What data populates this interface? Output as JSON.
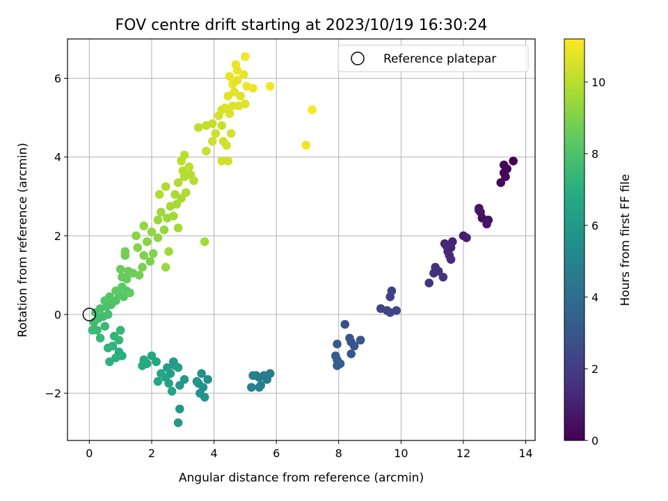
{
  "chart_data": {
    "type": "scatter",
    "title": "FOV centre drift starting at 2023/10/19 16:30:24",
    "xlabel": "Angular distance from reference (arcmin)",
    "ylabel": "Rotation from reference (arcmin)",
    "xlim": [
      -0.7,
      14.3
    ],
    "ylim": [
      -3.2,
      7.0
    ],
    "xticks": [
      0,
      2,
      4,
      6,
      8,
      10,
      12,
      14
    ],
    "yticks": [
      -2,
      0,
      2,
      4,
      6
    ],
    "grid": true,
    "legend": {
      "location": "top-right",
      "entries": [
        "Reference platepar"
      ]
    },
    "reference_point": {
      "x": 0,
      "y": 0
    },
    "colorbar": {
      "label": "Hours from first FF file",
      "colormap": "viridis",
      "range": [
        0,
        11.2
      ],
      "ticks": [
        0,
        2,
        4,
        6,
        8,
        10
      ]
    },
    "points": [
      {
        "x": 13.6,
        "y": 3.9,
        "h": 0.0
      },
      {
        "x": 13.4,
        "y": 3.7,
        "h": 0.05
      },
      {
        "x": 13.3,
        "y": 3.8,
        "h": 0.1
      },
      {
        "x": 13.3,
        "y": 3.6,
        "h": 0.15
      },
      {
        "x": 13.35,
        "y": 3.5,
        "h": 0.2
      },
      {
        "x": 13.2,
        "y": 3.35,
        "h": 0.25
      },
      {
        "x": 12.5,
        "y": 2.7,
        "h": 0.45
      },
      {
        "x": 12.55,
        "y": 2.6,
        "h": 0.5
      },
      {
        "x": 12.6,
        "y": 2.45,
        "h": 0.55
      },
      {
        "x": 12.8,
        "y": 2.4,
        "h": 0.6
      },
      {
        "x": 12.75,
        "y": 2.3,
        "h": 0.65
      },
      {
        "x": 12.5,
        "y": 2.65,
        "h": 0.7
      },
      {
        "x": 12.0,
        "y": 2.0,
        "h": 0.9
      },
      {
        "x": 12.1,
        "y": 1.95,
        "h": 0.95
      },
      {
        "x": 11.4,
        "y": 1.8,
        "h": 1.05
      },
      {
        "x": 11.65,
        "y": 1.85,
        "h": 1.1
      },
      {
        "x": 11.6,
        "y": 1.7,
        "h": 1.15
      },
      {
        "x": 11.5,
        "y": 1.6,
        "h": 1.2
      },
      {
        "x": 11.45,
        "y": 1.75,
        "h": 1.25
      },
      {
        "x": 11.55,
        "y": 1.5,
        "h": 1.3
      },
      {
        "x": 11.6,
        "y": 1.4,
        "h": 1.35
      },
      {
        "x": 11.1,
        "y": 1.2,
        "h": 1.5
      },
      {
        "x": 11.05,
        "y": 1.05,
        "h": 1.55
      },
      {
        "x": 11.2,
        "y": 1.1,
        "h": 1.6
      },
      {
        "x": 11.35,
        "y": 0.95,
        "h": 1.65
      },
      {
        "x": 10.9,
        "y": 0.8,
        "h": 1.7
      },
      {
        "x": 9.7,
        "y": 0.6,
        "h": 2.1
      },
      {
        "x": 9.65,
        "y": 0.45,
        "h": 2.15
      },
      {
        "x": 9.35,
        "y": 0.15,
        "h": 2.25
      },
      {
        "x": 9.55,
        "y": 0.1,
        "h": 2.3
      },
      {
        "x": 9.65,
        "y": 0.05,
        "h": 2.35
      },
      {
        "x": 9.85,
        "y": 0.1,
        "h": 2.4
      },
      {
        "x": 8.2,
        "y": -0.25,
        "h": 2.75
      },
      {
        "x": 8.35,
        "y": -0.6,
        "h": 2.85
      },
      {
        "x": 8.4,
        "y": -0.7,
        "h": 2.9
      },
      {
        "x": 8.5,
        "y": -0.8,
        "h": 2.95
      },
      {
        "x": 8.7,
        "y": -0.65,
        "h": 3.0
      },
      {
        "x": 8.4,
        "y": -1.0,
        "h": 3.05
      },
      {
        "x": 7.95,
        "y": -0.75,
        "h": 3.15
      },
      {
        "x": 7.9,
        "y": -1.05,
        "h": 3.2
      },
      {
        "x": 7.95,
        "y": -1.15,
        "h": 3.25
      },
      {
        "x": 7.95,
        "y": -1.3,
        "h": 3.3
      },
      {
        "x": 8.05,
        "y": -1.25,
        "h": 3.35
      },
      {
        "x": 5.8,
        "y": -1.5,
        "h": 4.5
      },
      {
        "x": 5.6,
        "y": -1.55,
        "h": 4.55
      },
      {
        "x": 5.45,
        "y": -1.6,
        "h": 4.6
      },
      {
        "x": 5.35,
        "y": -1.55,
        "h": 4.65
      },
      {
        "x": 5.7,
        "y": -1.65,
        "h": 4.7
      },
      {
        "x": 5.5,
        "y": -1.8,
        "h": 4.75
      },
      {
        "x": 5.45,
        "y": -1.85,
        "h": 4.8
      },
      {
        "x": 5.2,
        "y": -1.85,
        "h": 4.85
      },
      {
        "x": 5.25,
        "y": -1.55,
        "h": 4.9
      },
      {
        "x": 3.6,
        "y": -1.5,
        "h": 5.5
      },
      {
        "x": 3.8,
        "y": -1.65,
        "h": 5.55
      },
      {
        "x": 3.5,
        "y": -1.75,
        "h": 5.6
      },
      {
        "x": 3.65,
        "y": -1.85,
        "h": 5.65
      },
      {
        "x": 3.55,
        "y": -2.0,
        "h": 5.7
      },
      {
        "x": 3.7,
        "y": -2.1,
        "h": 5.75
      },
      {
        "x": 3.45,
        "y": -1.7,
        "h": 5.8
      },
      {
        "x": 2.9,
        "y": -2.4,
        "h": 5.9
      },
      {
        "x": 2.85,
        "y": -2.75,
        "h": 5.95
      },
      {
        "x": 3.05,
        "y": -1.65,
        "h": 6.0
      },
      {
        "x": 2.9,
        "y": -1.8,
        "h": 6.05
      },
      {
        "x": 2.7,
        "y": -1.2,
        "h": 6.1
      },
      {
        "x": 2.75,
        "y": -1.3,
        "h": 6.15
      },
      {
        "x": 2.5,
        "y": -1.35,
        "h": 6.2
      },
      {
        "x": 2.6,
        "y": -1.5,
        "h": 6.25
      },
      {
        "x": 2.85,
        "y": -1.35,
        "h": 6.3
      },
      {
        "x": 2.45,
        "y": -1.6,
        "h": 6.35
      },
      {
        "x": 2.55,
        "y": -1.75,
        "h": 6.4
      },
      {
        "x": 2.65,
        "y": -1.95,
        "h": 6.45
      },
      {
        "x": 2.3,
        "y": -1.5,
        "h": 6.5
      },
      {
        "x": 2.2,
        "y": -1.7,
        "h": 6.55
      },
      {
        "x": 2.15,
        "y": -1.2,
        "h": 6.6
      },
      {
        "x": 2.0,
        "y": -1.05,
        "h": 6.65
      },
      {
        "x": 1.75,
        "y": -1.15,
        "h": 6.7
      },
      {
        "x": 1.7,
        "y": -1.3,
        "h": 6.75
      },
      {
        "x": 1.85,
        "y": -1.25,
        "h": 6.8
      },
      {
        "x": 0.95,
        "y": -0.95,
        "h": 7.0
      },
      {
        "x": 1.05,
        "y": -1.05,
        "h": 7.05
      },
      {
        "x": 0.85,
        "y": -1.1,
        "h": 7.1
      },
      {
        "x": 0.65,
        "y": -1.2,
        "h": 7.15
      },
      {
        "x": 0.75,
        "y": -0.8,
        "h": 7.2
      },
      {
        "x": 0.6,
        "y": -0.85,
        "h": 7.25
      },
      {
        "x": 0.8,
        "y": -0.55,
        "h": 7.3
      },
      {
        "x": 0.95,
        "y": -0.65,
        "h": 7.35
      },
      {
        "x": 1.0,
        "y": -0.4,
        "h": 7.4
      },
      {
        "x": 0.35,
        "y": -0.6,
        "h": 7.45
      },
      {
        "x": 0.5,
        "y": -0.3,
        "h": 7.5
      },
      {
        "x": 0.25,
        "y": -0.4,
        "h": 7.55
      },
      {
        "x": 0.1,
        "y": -0.4,
        "h": 7.6
      },
      {
        "x": 0.15,
        "y": -0.2,
        "h": 7.65
      },
      {
        "x": 0.3,
        "y": -0.1,
        "h": 7.7
      },
      {
        "x": 0.45,
        "y": -0.05,
        "h": 7.75
      },
      {
        "x": 0.6,
        "y": 0.0,
        "h": 7.8
      },
      {
        "x": 0.2,
        "y": 0.05,
        "h": 7.85
      },
      {
        "x": 0.35,
        "y": 0.15,
        "h": 7.9
      },
      {
        "x": 0.55,
        "y": 0.2,
        "h": 7.95
      },
      {
        "x": 0.7,
        "y": 0.25,
        "h": 8.0
      },
      {
        "x": 0.85,
        "y": 0.35,
        "h": 8.05
      },
      {
        "x": 0.5,
        "y": 0.35,
        "h": 8.1
      },
      {
        "x": 0.65,
        "y": 0.45,
        "h": 8.15
      },
      {
        "x": 0.95,
        "y": 0.5,
        "h": 8.2
      },
      {
        "x": 1.1,
        "y": 0.45,
        "h": 8.25
      },
      {
        "x": 1.2,
        "y": 0.6,
        "h": 8.3
      },
      {
        "x": 1.05,
        "y": 0.7,
        "h": 8.35
      },
      {
        "x": 0.85,
        "y": 0.6,
        "h": 8.4
      },
      {
        "x": 1.3,
        "y": 0.55,
        "h": 8.45
      },
      {
        "x": 1.05,
        "y": 0.95,
        "h": 8.5
      },
      {
        "x": 1.2,
        "y": 0.9,
        "h": 8.55
      },
      {
        "x": 1.0,
        "y": 1.15,
        "h": 8.6
      },
      {
        "x": 1.25,
        "y": 1.1,
        "h": 8.65
      },
      {
        "x": 1.4,
        "y": 1.05,
        "h": 8.7
      },
      {
        "x": 1.15,
        "y": 1.5,
        "h": 8.75
      },
      {
        "x": 1.15,
        "y": 1.6,
        "h": 8.8
      },
      {
        "x": 1.6,
        "y": 1.0,
        "h": 8.85
      },
      {
        "x": 1.7,
        "y": 1.2,
        "h": 8.9
      },
      {
        "x": 1.95,
        "y": 1.35,
        "h": 8.95
      },
      {
        "x": 1.75,
        "y": 1.5,
        "h": 9.0
      },
      {
        "x": 2.05,
        "y": 1.55,
        "h": 9.05
      },
      {
        "x": 1.55,
        "y": 1.7,
        "h": 9.1
      },
      {
        "x": 1.85,
        "y": 1.85,
        "h": 9.15
      },
      {
        "x": 1.5,
        "y": 2.0,
        "h": 9.2
      },
      {
        "x": 2.2,
        "y": 1.95,
        "h": 9.25
      },
      {
        "x": 2.0,
        "y": 2.1,
        "h": 9.3
      },
      {
        "x": 1.75,
        "y": 2.25,
        "h": 9.35
      },
      {
        "x": 2.4,
        "y": 2.15,
        "h": 9.4
      },
      {
        "x": 2.2,
        "y": 2.4,
        "h": 9.45
      },
      {
        "x": 2.5,
        "y": 2.45,
        "h": 9.5
      },
      {
        "x": 2.3,
        "y": 2.6,
        "h": 9.55
      },
      {
        "x": 2.55,
        "y": 1.6,
        "h": 9.55
      },
      {
        "x": 2.45,
        "y": 1.2,
        "h": 9.5
      },
      {
        "x": 2.7,
        "y": 2.5,
        "h": 9.6
      },
      {
        "x": 2.6,
        "y": 2.75,
        "h": 9.65
      },
      {
        "x": 2.85,
        "y": 2.2,
        "h": 9.6
      },
      {
        "x": 2.8,
        "y": 2.8,
        "h": 9.7
      },
      {
        "x": 2.95,
        "y": 2.95,
        "h": 9.75
      },
      {
        "x": 2.75,
        "y": 3.05,
        "h": 9.75
      },
      {
        "x": 2.25,
        "y": 3.05,
        "h": 9.8
      },
      {
        "x": 2.45,
        "y": 3.25,
        "h": 9.8
      },
      {
        "x": 3.1,
        "y": 3.1,
        "h": 9.85
      },
      {
        "x": 2.85,
        "y": 3.35,
        "h": 9.85
      },
      {
        "x": 3.05,
        "y": 3.5,
        "h": 9.9
      },
      {
        "x": 3.25,
        "y": 3.55,
        "h": 9.9
      },
      {
        "x": 3.0,
        "y": 3.65,
        "h": 9.95
      },
      {
        "x": 3.35,
        "y": 3.4,
        "h": 9.95
      },
      {
        "x": 3.2,
        "y": 3.75,
        "h": 10.0
      },
      {
        "x": 2.95,
        "y": 3.9,
        "h": 10.0
      },
      {
        "x": 3.05,
        "y": 4.05,
        "h": 10.05
      },
      {
        "x": 3.7,
        "y": 1.85,
        "h": 9.7
      },
      {
        "x": 3.5,
        "y": 4.75,
        "h": 10.1
      },
      {
        "x": 3.75,
        "y": 4.8,
        "h": 10.15
      },
      {
        "x": 3.95,
        "y": 4.85,
        "h": 10.2
      },
      {
        "x": 4.25,
        "y": 4.8,
        "h": 10.25
      },
      {
        "x": 4.05,
        "y": 4.6,
        "h": 10.3
      },
      {
        "x": 3.95,
        "y": 4.4,
        "h": 10.3
      },
      {
        "x": 3.75,
        "y": 4.15,
        "h": 10.25
      },
      {
        "x": 4.3,
        "y": 4.4,
        "h": 10.35
      },
      {
        "x": 4.4,
        "y": 4.3,
        "h": 10.4
      },
      {
        "x": 4.25,
        "y": 3.9,
        "h": 10.4
      },
      {
        "x": 4.45,
        "y": 3.9,
        "h": 10.45
      },
      {
        "x": 4.55,
        "y": 4.6,
        "h": 10.5
      },
      {
        "x": 4.15,
        "y": 5.05,
        "h": 10.5
      },
      {
        "x": 4.25,
        "y": 5.2,
        "h": 10.55
      },
      {
        "x": 4.35,
        "y": 5.25,
        "h": 10.6
      },
      {
        "x": 4.5,
        "y": 5.1,
        "h": 10.6
      },
      {
        "x": 4.6,
        "y": 5.3,
        "h": 10.65
      },
      {
        "x": 4.8,
        "y": 5.3,
        "h": 10.65
      },
      {
        "x": 5.0,
        "y": 5.35,
        "h": 10.7
      },
      {
        "x": 4.85,
        "y": 5.55,
        "h": 10.7
      },
      {
        "x": 4.45,
        "y": 5.55,
        "h": 10.75
      },
      {
        "x": 4.65,
        "y": 5.65,
        "h": 10.75
      },
      {
        "x": 4.6,
        "y": 5.85,
        "h": 10.8
      },
      {
        "x": 4.75,
        "y": 5.95,
        "h": 10.8
      },
      {
        "x": 4.95,
        "y": 6.1,
        "h": 10.85
      },
      {
        "x": 4.5,
        "y": 6.05,
        "h": 10.85
      },
      {
        "x": 4.75,
        "y": 6.2,
        "h": 10.9
      },
      {
        "x": 4.7,
        "y": 6.35,
        "h": 10.9
      },
      {
        "x": 5.05,
        "y": 5.8,
        "h": 10.95
      },
      {
        "x": 5.25,
        "y": 5.75,
        "h": 10.95
      },
      {
        "x": 5.0,
        "y": 6.55,
        "h": 11.0
      },
      {
        "x": 5.8,
        "y": 5.8,
        "h": 11.05
      },
      {
        "x": 6.95,
        "y": 4.3,
        "h": 10.95
      },
      {
        "x": 7.15,
        "y": 5.2,
        "h": 11.2
      }
    ]
  }
}
